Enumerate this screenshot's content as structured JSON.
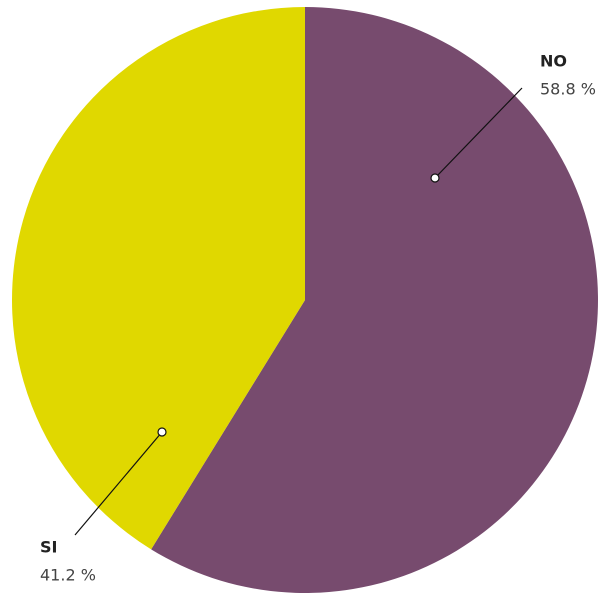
{
  "chart_data": {
    "type": "pie",
    "categories": [
      "NO",
      "SI"
    ],
    "values": [
      58.8,
      41.2
    ],
    "value_labels": [
      "58.8 %",
      "41.2 %"
    ],
    "colors": [
      "#774b6e",
      "#e0d800"
    ]
  }
}
